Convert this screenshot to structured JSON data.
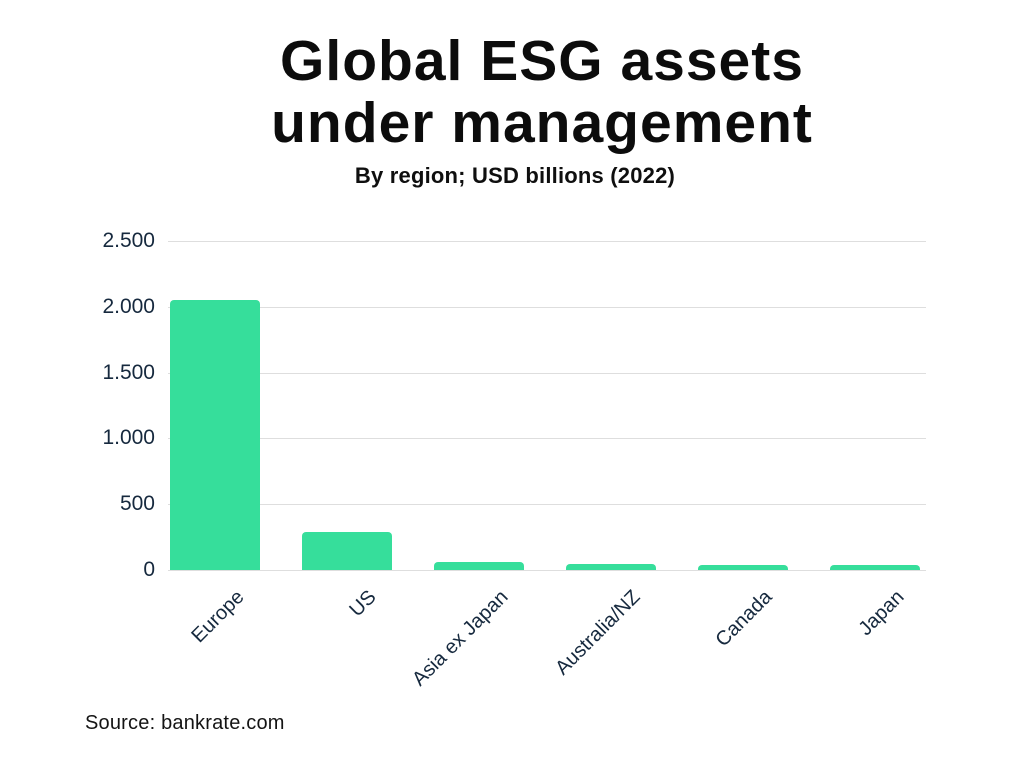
{
  "header": {
    "title": "Global ESG assets\nunder management",
    "subtitle": "By region; USD billions (2022)"
  },
  "chart_data": {
    "type": "bar",
    "title": "Global ESG assets under management",
    "subtitle": "By region; USD billions (2022)",
    "categories": [
      "Europe",
      "US",
      "Asia ex Japan",
      "Australia/NZ",
      "Canada",
      "Japan"
    ],
    "values": [
      2050,
      290,
      60,
      45,
      40,
      35
    ],
    "xlabel": "",
    "ylabel": "USD billions",
    "ylim": [
      0,
      2500
    ],
    "yticks": [
      {
        "label": "2.500",
        "value": 2500
      },
      {
        "label": "2.000",
        "value": 2000
      },
      {
        "label": "1.500",
        "value": 1500
      },
      {
        "label": "1.000",
        "value": 1000
      },
      {
        "label": "500",
        "value": 500
      },
      {
        "label": "0",
        "value": 0
      }
    ],
    "grid": "horizontal",
    "legend": "none",
    "colors": {
      "bar": "#36de9b",
      "gridline": "#dedede",
      "axis_label": "#16293e",
      "title": "#0c0c0c"
    }
  },
  "footer": {
    "source": "Source: bankrate.com"
  }
}
